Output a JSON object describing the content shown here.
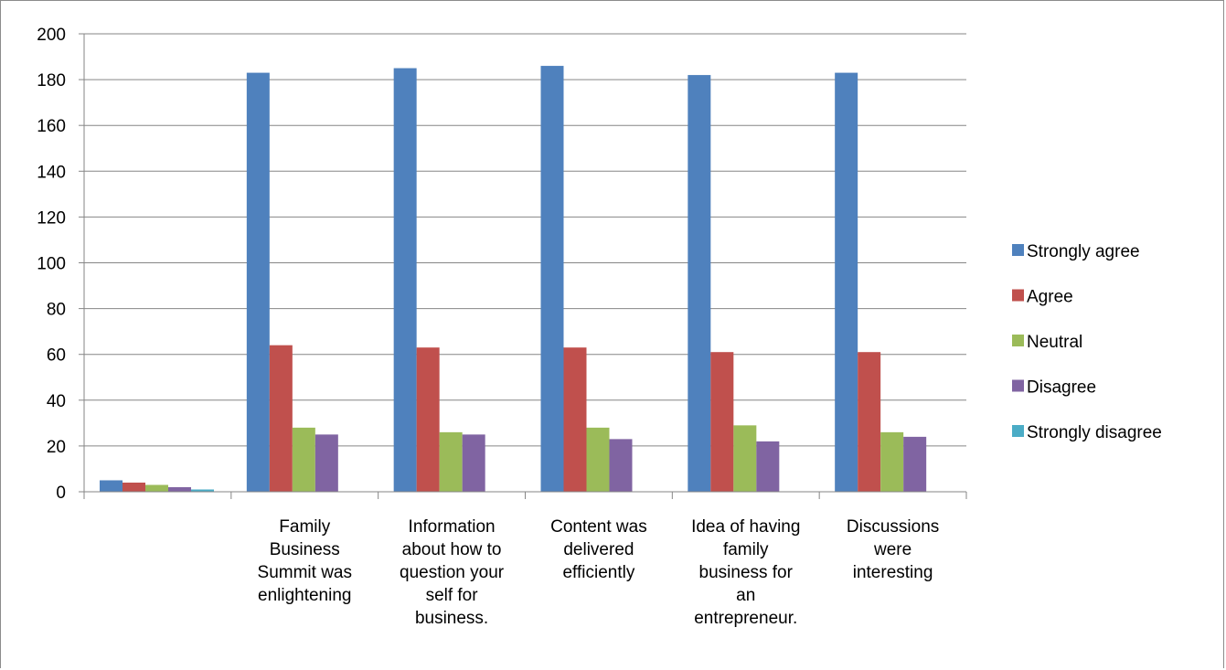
{
  "chart_data": {
    "type": "bar",
    "categories": [
      "",
      "Family Business Summit was enlightening",
      "Information about how to question your self for business.",
      "Content was delivered efficiently",
      "Idea of having family business for an entrepreneur.",
      "Discussions were interesting"
    ],
    "category_lines": [
      [],
      [
        "Family",
        "Business",
        "Summit was",
        "enlightening"
      ],
      [
        "Information",
        "about how to",
        "question your",
        "self for",
        "business."
      ],
      [
        "Content was",
        "delivered",
        "efficiently"
      ],
      [
        "Idea of having",
        "family",
        "business for",
        "an",
        "entrepreneur."
      ],
      [
        "Discussions",
        "were",
        "interesting"
      ]
    ],
    "series": [
      {
        "name": "Strongly agree",
        "color": "#4f81bd",
        "values": [
          5,
          183,
          185,
          186,
          182,
          183
        ]
      },
      {
        "name": "Agree",
        "color": "#c0504d",
        "values": [
          4,
          64,
          63,
          63,
          61,
          61
        ]
      },
      {
        "name": "Neutral",
        "color": "#9bbb59",
        "values": [
          3,
          28,
          26,
          28,
          29,
          26
        ]
      },
      {
        "name": "Disagree",
        "color": "#8064a2",
        "values": [
          2,
          25,
          25,
          23,
          22,
          24
        ]
      },
      {
        "name": "Strongly disagree",
        "color": "#4bacc6",
        "values": [
          1,
          0,
          0,
          0,
          0,
          0
        ]
      }
    ],
    "ylim": [
      0,
      200
    ],
    "yticks": [
      "0",
      "20",
      "40",
      "60",
      "80",
      "100",
      "120",
      "140",
      "160",
      "180",
      "200"
    ],
    "grid": true,
    "legend_position": "right",
    "title": "",
    "xlabel": "",
    "ylabel": ""
  }
}
